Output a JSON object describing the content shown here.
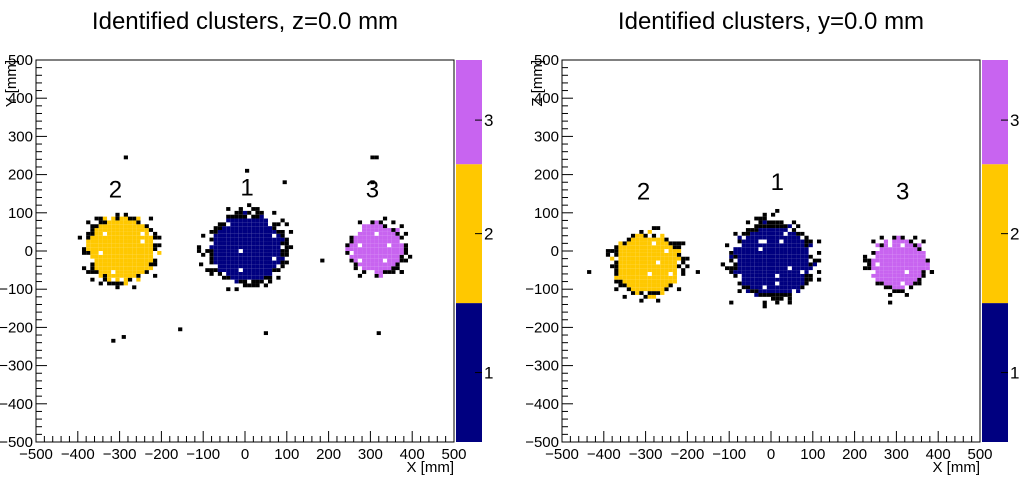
{
  "chart_data": [
    {
      "type": "heatmap",
      "title": "Identified clusters, z=0.0 mm",
      "xlabel": "X [mm]",
      "ylabel": "Y [mm]",
      "xlim": [
        -500,
        500
      ],
      "ylim": [
        -500,
        500
      ],
      "x_ticks": [
        -500,
        -400,
        -300,
        -200,
        -100,
        0,
        100,
        200,
        300,
        400,
        500
      ],
      "y_ticks": [
        -500,
        -400,
        -300,
        -200,
        -100,
        0,
        100,
        200,
        300,
        400,
        500
      ],
      "colorbar": {
        "ticks": [
          "1",
          "2",
          "3"
        ],
        "colors": {
          "1": "#000080",
          "2": "#ffc800",
          "3": "#c864f0"
        }
      },
      "clusters": [
        {
          "id": 1,
          "label": "1",
          "center": [
            0,
            0
          ],
          "radius": 95,
          "color": "#000080",
          "label_pos": [
            5,
            145
          ]
        },
        {
          "id": 2,
          "label": "2",
          "center": [
            -300,
            0
          ],
          "radius": 90,
          "color": "#ffc800",
          "label_pos": [
            -310,
            140
          ]
        },
        {
          "id": 3,
          "label": "3",
          "center": [
            310,
            0
          ],
          "radius": 70,
          "color": "#c864f0",
          "label_pos": [
            305,
            140
          ]
        }
      ],
      "noise_points": [
        [
          -290,
          240
        ],
        [
          300,
          240
        ],
        [
          310,
          240
        ],
        [
          0,
          205
        ],
        [
          90,
          175
        ],
        [
          300,
          175
        ],
        [
          -320,
          -240
        ],
        [
          -295,
          -230
        ],
        [
          -160,
          -210
        ],
        [
          45,
          -220
        ],
        [
          315,
          -220
        ],
        [
          -110,
          -40
        ],
        [
          180,
          -30
        ],
        [
          370,
          -60
        ]
      ]
    },
    {
      "type": "heatmap",
      "title": "Identified clusters, y=0.0 mm",
      "xlabel": "X [mm]",
      "ylabel": "Z [mm]",
      "xlim": [
        -500,
        500
      ],
      "ylim": [
        -500,
        500
      ],
      "x_ticks": [
        -500,
        -400,
        -300,
        -200,
        -100,
        0,
        100,
        200,
        300,
        400,
        500
      ],
      "y_ticks": [
        -500,
        -400,
        -300,
        -200,
        -100,
        0,
        100,
        200,
        300,
        400,
        500
      ],
      "colorbar": {
        "ticks": [
          "1",
          "2",
          "3"
        ],
        "colors": {
          "1": "#000080",
          "2": "#ffc800",
          "3": "#c864f0"
        }
      },
      "clusters": [
        {
          "id": 1,
          "label": "1",
          "center": [
            0,
            -30
          ],
          "radius": 100,
          "color": "#000080",
          "label_pos": [
            15,
            160
          ]
        },
        {
          "id": 2,
          "label": "2",
          "center": [
            -300,
            -40
          ],
          "radius": 85,
          "color": "#ffc800",
          "label_pos": [
            -305,
            135
          ]
        },
        {
          "id": 3,
          "label": "3",
          "center": [
            300,
            -40
          ],
          "radius": 70,
          "color": "#c864f0",
          "label_pos": [
            315,
            135
          ]
        }
      ],
      "noise_points": [
        [
          -180,
          -60
        ],
        [
          -440,
          -60
        ],
        [
          220,
          -30
        ],
        [
          -120,
          -40
        ],
        [
          60,
          60
        ],
        [
          10,
          100
        ],
        [
          -100,
          -140
        ],
        [
          280,
          -140
        ],
        [
          380,
          -60
        ]
      ]
    }
  ]
}
